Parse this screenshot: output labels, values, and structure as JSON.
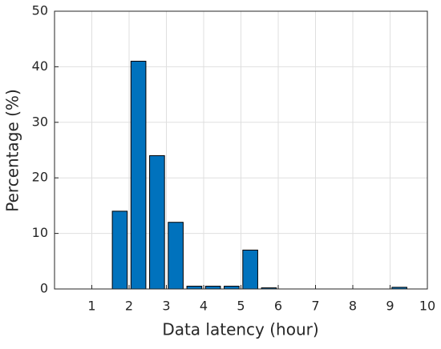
{
  "chart_data": {
    "type": "bar",
    "xlabel": "Data latency (hour)",
    "ylabel": "Percentage (%)",
    "x": [
      1.75,
      2.25,
      2.75,
      3.25,
      3.75,
      4.25,
      4.75,
      5.25,
      5.75,
      9.25
    ],
    "values": [
      14,
      41,
      24,
      12,
      0.5,
      0.5,
      0.5,
      7,
      0.2,
      0.3
    ],
    "color": "#0072bd",
    "xlim": [
      0,
      10
    ],
    "xticks": [
      1,
      2,
      3,
      4,
      5,
      6,
      7,
      8,
      9,
      10
    ],
    "ylim": [
      0,
      50
    ],
    "yticks": [
      0,
      10,
      20,
      30,
      40,
      50
    ],
    "grid": true
  }
}
